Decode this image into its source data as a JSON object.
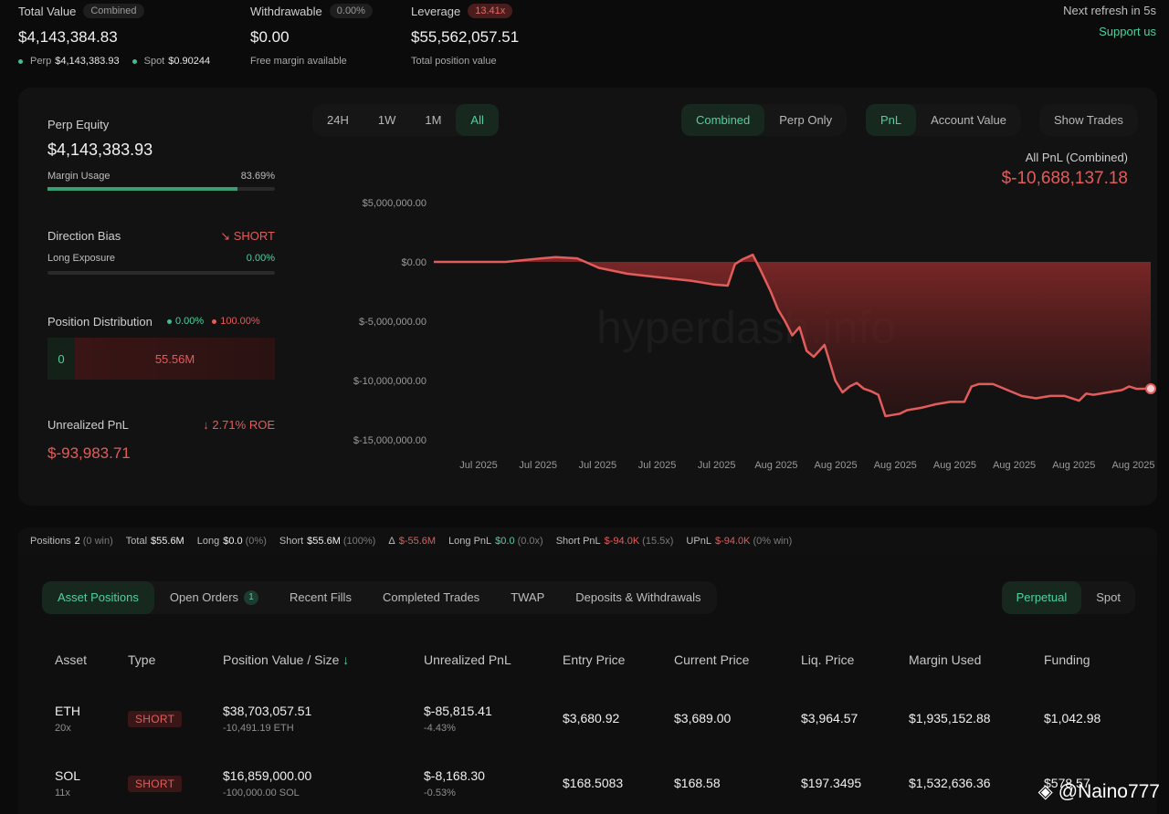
{
  "top": {
    "total_value_label": "Total Value",
    "total_value_pill": "Combined",
    "total_value": "$4,143,384.83",
    "perp_label": "Perp",
    "perp_value": "$4,143,383.93",
    "spot_label": "Spot",
    "spot_value": "$0.90244",
    "withdrawable_label": "Withdrawable",
    "withdrawable_pill": "0.00%",
    "withdrawable_value": "$0.00",
    "withdrawable_sub": "Free margin available",
    "leverage_label": "Leverage",
    "leverage_pill": "13.41x",
    "leverage_value": "$55,562,057.51",
    "leverage_sub": "Total position value",
    "refresh": "Next refresh in 5s",
    "support": "Support us"
  },
  "left": {
    "perp_equity_label": "Perp Equity",
    "perp_equity": "$4,143,383.93",
    "margin_usage_label": "Margin Usage",
    "margin_usage": "83.69%",
    "margin_usage_frac": 0.8369,
    "direction_label": "Direction Bias",
    "direction": "SHORT",
    "long_exposure_label": "Long Exposure",
    "long_exposure": "0.00%",
    "dist_label": "Position Distribution",
    "dist_long": "0.00%",
    "dist_short": "100.00%",
    "dist_long_val": "0",
    "dist_short_val": "55.56M",
    "upnl_label": "Unrealized PnL",
    "upnl_roe": "2.71% ROE",
    "upnl": "$-93,983.71"
  },
  "range_tabs": [
    "24H",
    "1W",
    "1M",
    "All"
  ],
  "range_active": "All",
  "mode_tabs": [
    "Combined",
    "Perp Only"
  ],
  "mode_active": "Combined",
  "metric_tabs": [
    "PnL",
    "Account Value"
  ],
  "metric_active": "PnL",
  "show_trades": "Show Trades",
  "pnl_title": "All PnL (Combined)",
  "pnl_value": "$-10,688,137.18",
  "chart_watermark": "hyperdash.info",
  "chart_data": {
    "type": "area",
    "title": "",
    "ylim": [
      -15000000,
      5000000
    ],
    "y_ticks": [
      5000000,
      0,
      -5000000,
      -10000000,
      -15000000
    ],
    "y_tick_labels": [
      "$5,000,000.00",
      "$0.00",
      "$-5,000,000.00",
      "$-10,000,000.00",
      "$-15,000,000.00"
    ],
    "x_tick_labels": [
      "Jul 2025",
      "Jul 2025",
      "Jul 2025",
      "Jul 2025",
      "Jul 2025",
      "Aug 2025",
      "Aug 2025",
      "Aug 2025",
      "Aug 2025",
      "Aug 2025",
      "Aug 2025",
      "Aug 2025"
    ],
    "series": [
      {
        "color": "#e35c5c",
        "x": [
          0,
          0.05,
          0.1,
          0.15,
          0.17,
          0.2,
          0.23,
          0.27,
          0.3,
          0.33,
          0.36,
          0.39,
          0.41,
          0.42,
          0.43,
          0.445,
          0.455,
          0.47,
          0.48,
          0.49,
          0.5,
          0.51,
          0.52,
          0.53,
          0.545,
          0.56,
          0.57,
          0.58,
          0.59,
          0.6,
          0.61,
          0.62,
          0.63,
          0.64,
          0.65,
          0.66,
          0.68,
          0.7,
          0.72,
          0.74,
          0.75,
          0.76,
          0.78,
          0.8,
          0.82,
          0.84,
          0.86,
          0.88,
          0.9,
          0.91,
          0.92,
          0.94,
          0.96,
          0.97,
          0.98,
          1.0
        ],
        "values": [
          0,
          0,
          0,
          300000,
          400000,
          300000,
          -500000,
          -1000000,
          -1200000,
          -1400000,
          -1600000,
          -1900000,
          -2000000,
          -200000,
          200000,
          600000,
          -600000,
          -2500000,
          -4000000,
          -5000000,
          -6200000,
          -5500000,
          -7500000,
          -8000000,
          -7000000,
          -10000000,
          -11000000,
          -10500000,
          -10200000,
          -10700000,
          -10900000,
          -11200000,
          -13000000,
          -12900000,
          -12800000,
          -12500000,
          -12300000,
          -12000000,
          -11800000,
          -11800000,
          -10500000,
          -10300000,
          -10300000,
          -10800000,
          -11300000,
          -11500000,
          -11300000,
          -11300000,
          -11700000,
          -11100000,
          -11200000,
          -11000000,
          -10800000,
          -10500000,
          -10700000,
          -10688137
        ]
      }
    ]
  },
  "stats": {
    "positions_label": "Positions",
    "positions": "2",
    "positions_sub": "(0 win)",
    "total_label": "Total",
    "total": "$55.6M",
    "long_label": "Long",
    "long": "$0.0",
    "long_sub": "(0%)",
    "short_label": "Short",
    "short": "$55.6M",
    "short_sub": "(100%)",
    "delta_label": "Δ",
    "delta": "$-55.6M",
    "longpnl_label": "Long PnL",
    "longpnl": "$0.0",
    "longpnl_sub": "(0.0x)",
    "shortpnl_label": "Short PnL",
    "shortpnl": "$-94.0K",
    "shortpnl_sub": "(15.5x)",
    "upnl_label": "UPnL",
    "upnl": "$-94.0K",
    "upnl_sub": "(0% win)"
  },
  "tabs": {
    "asset_positions": "Asset Positions",
    "open_orders": "Open Orders",
    "open_orders_count": "1",
    "recent_fills": "Recent Fills",
    "completed_trades": "Completed Trades",
    "twap": "TWAP",
    "deposits": "Deposits & Withdrawals",
    "perpetual": "Perpetual",
    "spot": "Spot"
  },
  "table": {
    "headers": {
      "asset": "Asset",
      "type": "Type",
      "pos_value": "Position Value / Size",
      "upnl": "Unrealized PnL",
      "entry": "Entry Price",
      "current": "Current Price",
      "liq": "Liq. Price",
      "margin": "Margin Used",
      "funding": "Funding"
    },
    "rows": [
      {
        "asset": "ETH",
        "lev": "20x",
        "type": "SHORT",
        "value": "$38,703,057.51",
        "size": "-10,491.19 ETH",
        "upnl": "$-85,815.41",
        "upnl_pct": "-4.43%",
        "entry": "$3,680.92",
        "current": "$3,689.00",
        "liq": "$3,964.57",
        "margin": "$1,935,152.88",
        "funding": "$1,042.98"
      },
      {
        "asset": "SOL",
        "lev": "11x",
        "type": "SHORT",
        "value": "$16,859,000.00",
        "size": "-100,000.00 SOL",
        "upnl": "$-8,168.30",
        "upnl_pct": "-0.53%",
        "entry": "$168.5083",
        "current": "$168.58",
        "liq": "$197.3495",
        "margin": "$1,532,636.36",
        "funding": "$578.57"
      }
    ]
  },
  "watermark": "@Naino777"
}
